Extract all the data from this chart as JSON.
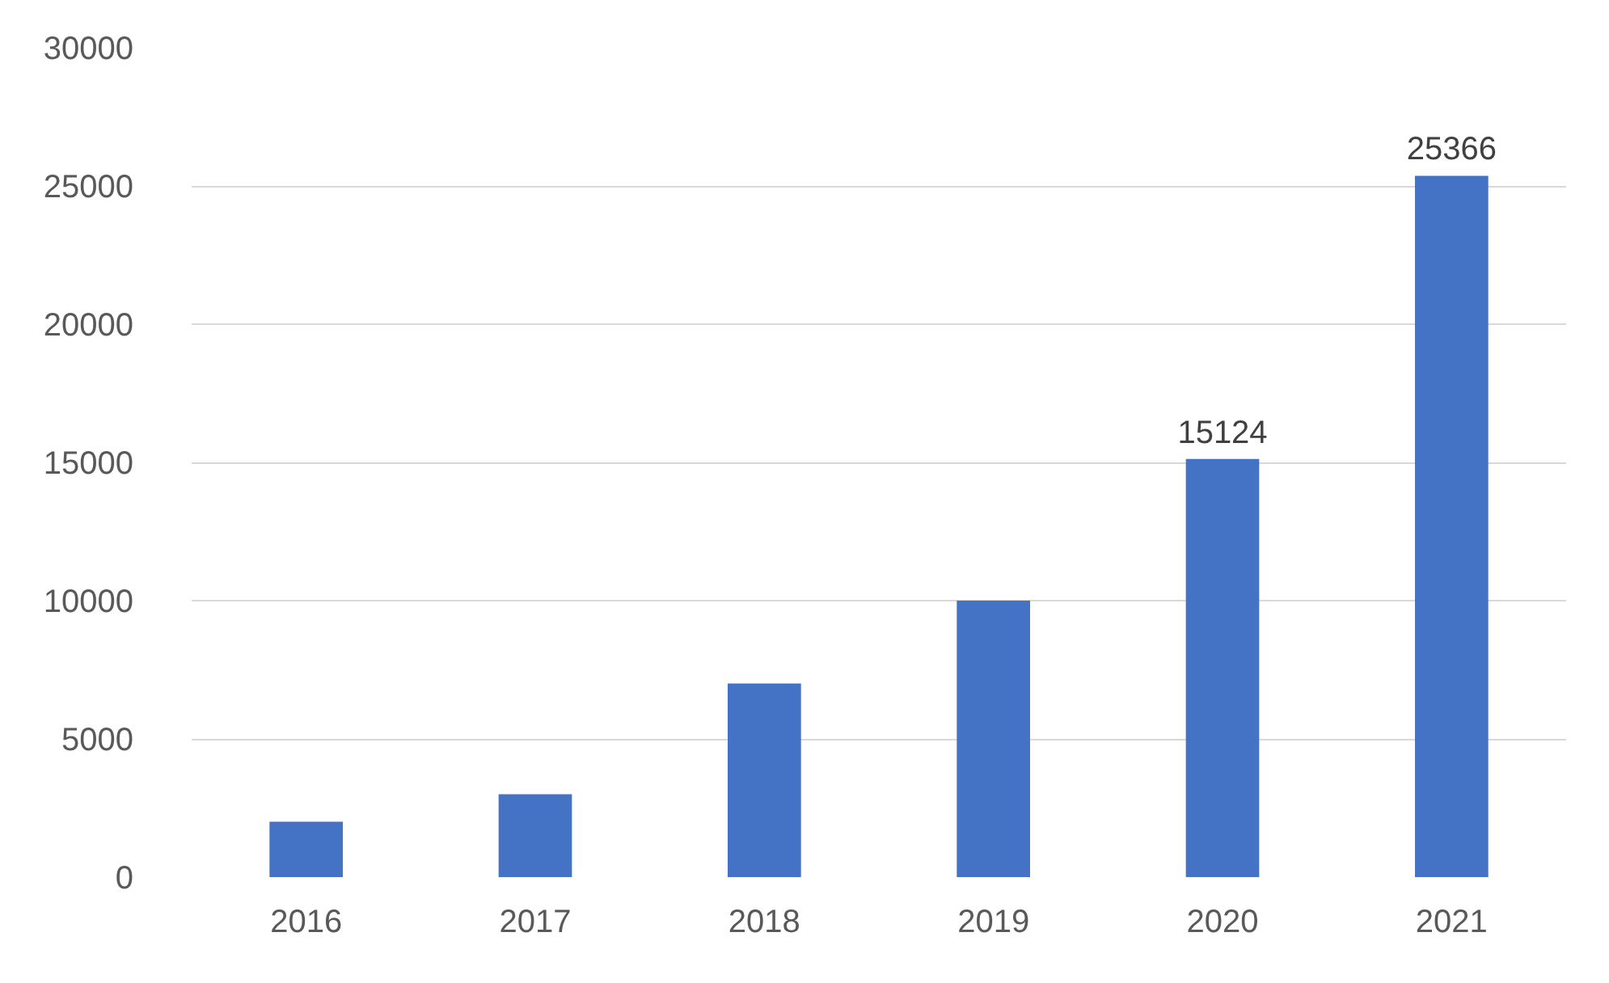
{
  "chart_data": {
    "type": "bar",
    "categories": [
      "2016",
      "2017",
      "2018",
      "2019",
      "2020",
      "2021"
    ],
    "values": [
      2000,
      3000,
      7000,
      10000,
      15124,
      25366
    ],
    "value_labels": [
      null,
      null,
      null,
      null,
      "15124",
      "25366"
    ],
    "color": "#4472c4",
    "ylim": [
      0,
      30000
    ],
    "yticks": [
      0,
      5000,
      10000,
      15000,
      20000,
      25000,
      30000
    ],
    "grid": "y"
  }
}
